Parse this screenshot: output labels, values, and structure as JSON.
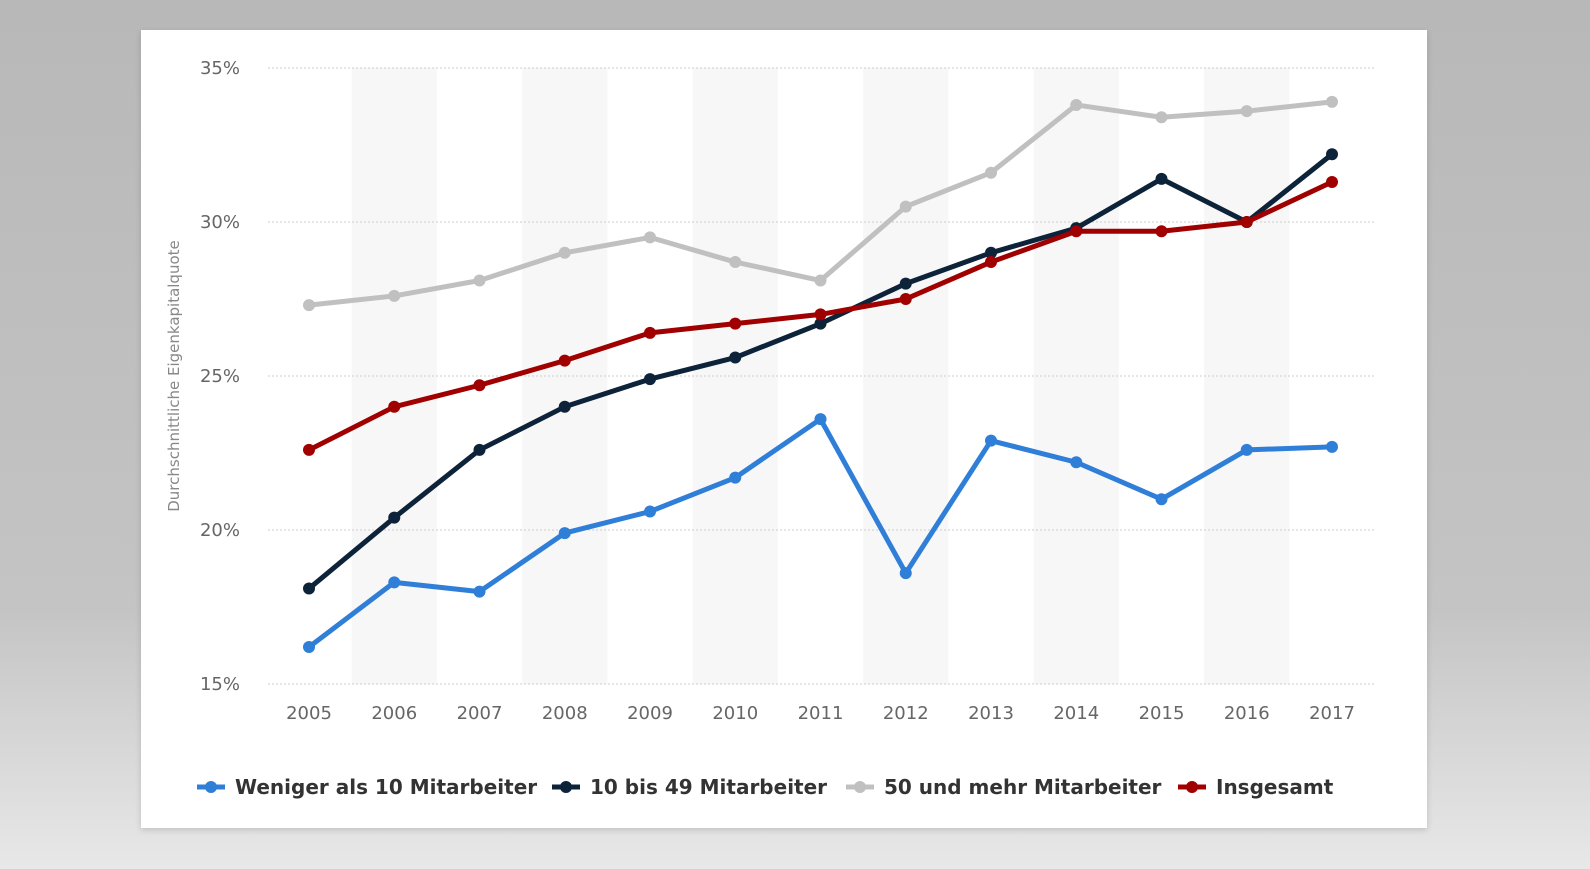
{
  "chart_data": {
    "type": "line",
    "ylabel": "Durchschnittliche Eigenkapitalquote",
    "xlabel": "",
    "x": [
      "2005",
      "2006",
      "2007",
      "2008",
      "2009",
      "2010",
      "2011",
      "2012",
      "2013",
      "2014",
      "2015",
      "2016",
      "2017"
    ],
    "ylim": [
      15,
      35
    ],
    "yticks": [
      15,
      20,
      25,
      30,
      35
    ],
    "ytick_labels": [
      "15%",
      "20%",
      "25%",
      "30%",
      "35%"
    ],
    "grid": true,
    "legend_position": "bottom",
    "series": [
      {
        "name": "Weniger als 10 Mitarbeiter",
        "color": "#2f7ed8",
        "values": [
          16.2,
          18.3,
          18.0,
          19.9,
          20.6,
          21.7,
          23.6,
          18.6,
          22.9,
          22.2,
          21.0,
          22.6,
          22.7
        ]
      },
      {
        "name": "10 bis 49 Mitarbeiter",
        "color": "#0d233a",
        "values": [
          18.1,
          20.4,
          22.6,
          24.0,
          24.9,
          25.6,
          26.7,
          28.0,
          29.0,
          29.8,
          31.4,
          30.0,
          32.2
        ]
      },
      {
        "name": "50 und mehr Mitarbeiter",
        "color": "#c0c0c0",
        "values": [
          27.3,
          27.6,
          28.1,
          29.0,
          29.5,
          28.7,
          28.1,
          30.5,
          31.6,
          33.8,
          33.4,
          33.6,
          33.9
        ]
      },
      {
        "name": "Insgesamt",
        "color": "#a00000",
        "values": [
          22.6,
          24.0,
          24.7,
          25.5,
          26.4,
          26.7,
          27.0,
          27.5,
          28.7,
          29.7,
          29.7,
          30.0,
          31.3
        ]
      }
    ]
  }
}
